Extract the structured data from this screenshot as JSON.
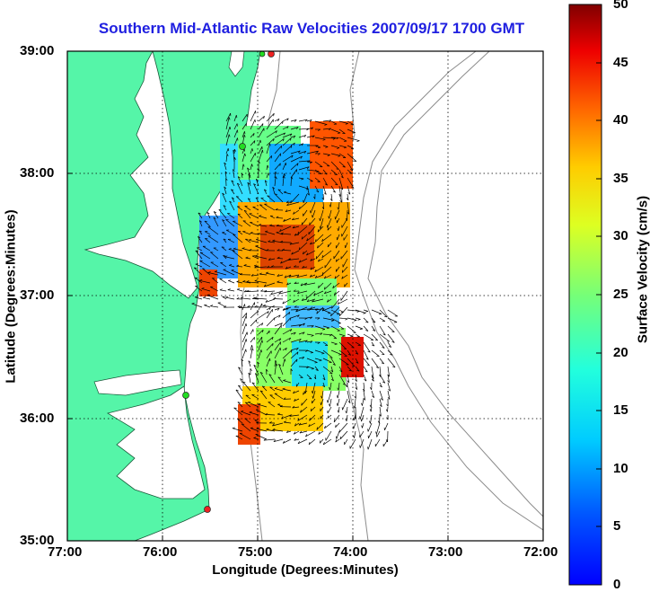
{
  "title": "Southern Mid-Atlantic Raw Velocities 2007/09/17 1700 GMT",
  "x_axis_label": "Longitude (Degrees:Minutes)",
  "y_axis_label": "Latitude (Degrees:Minutes)",
  "x_ticks": [
    "77:00",
    "76:00",
    "75:00",
    "74:00",
    "73:00",
    "72:00"
  ],
  "y_ticks": [
    "39:00",
    "38:00",
    "37:00",
    "36:00",
    "35:00"
  ],
  "colorbar": {
    "label": "Surface Velocity (cm/s)",
    "ticks": [
      "50",
      "45",
      "40",
      "35",
      "30",
      "25",
      "20",
      "15",
      "10",
      "5",
      "0"
    ],
    "range": [
      0,
      50
    ],
    "colormap": "jet"
  },
  "colors": {
    "land": "#55f5a8",
    "title": "#1f1fe0",
    "bathymetry": "#8c8c8c",
    "station_green": "#22dd22",
    "station_red": "#ee2222"
  },
  "map_extent": {
    "lon": [
      -77,
      -72
    ],
    "lat": [
      35,
      39
    ]
  }
}
